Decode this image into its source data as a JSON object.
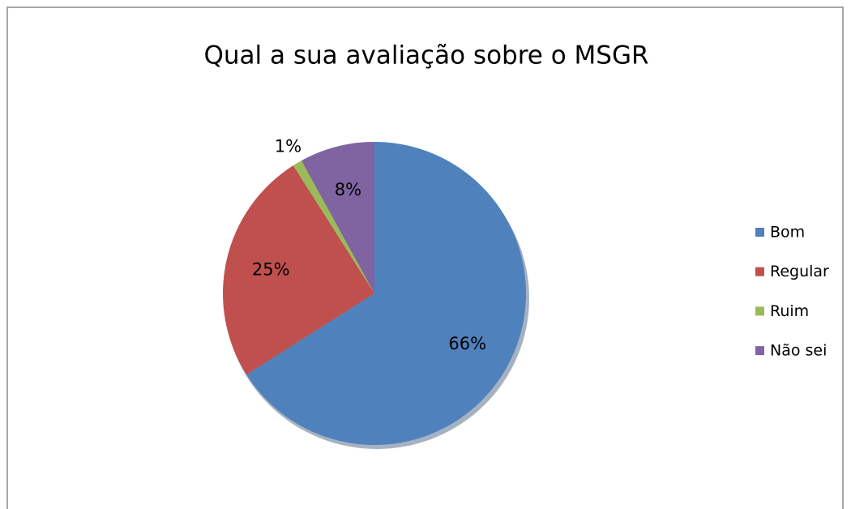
{
  "chart_data": {
    "type": "pie",
    "title": "Qual a sua avaliação sobre o MSGR",
    "categories": [
      "Bom",
      "Regular",
      "Ruim",
      "Não sei"
    ],
    "values": [
      66,
      25,
      1,
      8
    ],
    "value_labels": [
      "66%",
      "25%",
      "1%",
      "8%"
    ],
    "colors": [
      "#4f81bd",
      "#c0504d",
      "#9bbb59",
      "#8064a2"
    ],
    "legend": "right"
  }
}
